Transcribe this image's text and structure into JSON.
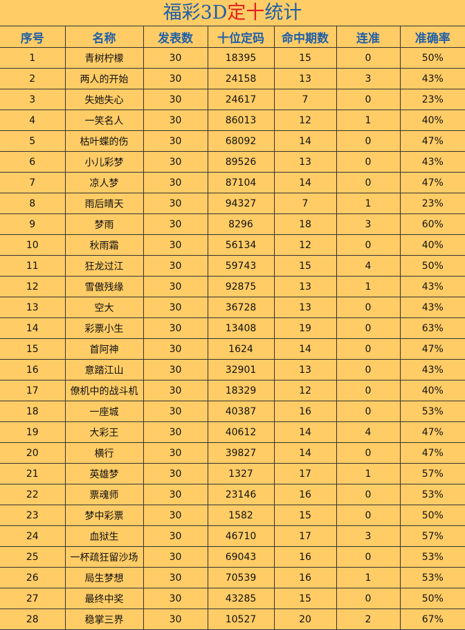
{
  "title": {
    "part1": "福彩3D",
    "part2": "定十",
    "part3": "统计"
  },
  "headers": [
    "序号",
    "名称",
    "发表数",
    "十位定码",
    "命中期数",
    "连准",
    "准确率"
  ],
  "rows": [
    [
      "1",
      "青树柠檬",
      "30",
      "18395",
      "15",
      "0",
      "50%"
    ],
    [
      "2",
      "两人的开始",
      "30",
      "24158",
      "13",
      "3",
      "43%"
    ],
    [
      "3",
      "失她失心",
      "30",
      "24617",
      "7",
      "0",
      "23%"
    ],
    [
      "4",
      "一笑名人",
      "30",
      "86013",
      "12",
      "1",
      "40%"
    ],
    [
      "5",
      "枯叶蝶的伤",
      "30",
      "68092",
      "14",
      "0",
      "47%"
    ],
    [
      "6",
      "小儿彩梦",
      "30",
      "89526",
      "13",
      "0",
      "43%"
    ],
    [
      "7",
      "凉人梦",
      "30",
      "87104",
      "14",
      "0",
      "47%"
    ],
    [
      "8",
      "雨后晴天",
      "30",
      "94327",
      "7",
      "1",
      "23%"
    ],
    [
      "9",
      "梦雨",
      "30",
      "8296",
      "18",
      "3",
      "60%"
    ],
    [
      "10",
      "秋雨霜",
      "30",
      "56134",
      "12",
      "0",
      "40%"
    ],
    [
      "11",
      "狂龙过江",
      "30",
      "59743",
      "15",
      "4",
      "50%"
    ],
    [
      "12",
      "雪傲残缘",
      "30",
      "92875",
      "13",
      "1",
      "43%"
    ],
    [
      "13",
      "空大",
      "30",
      "36728",
      "13",
      "0",
      "43%"
    ],
    [
      "14",
      "彩票小生",
      "30",
      "13408",
      "19",
      "0",
      "63%"
    ],
    [
      "15",
      "首阿神",
      "30",
      "1624",
      "14",
      "0",
      "47%"
    ],
    [
      "16",
      "意踏江山",
      "30",
      "32901",
      "13",
      "0",
      "43%"
    ],
    [
      "17",
      "僚机中的战斗机",
      "30",
      "18329",
      "12",
      "0",
      "40%"
    ],
    [
      "18",
      "一座城",
      "30",
      "40387",
      "16",
      "0",
      "53%"
    ],
    [
      "19",
      "大彩王",
      "30",
      "40612",
      "14",
      "4",
      "47%"
    ],
    [
      "20",
      "横行",
      "30",
      "39827",
      "14",
      "0",
      "47%"
    ],
    [
      "21",
      "英雄梦",
      "30",
      "1327",
      "17",
      "1",
      "57%"
    ],
    [
      "22",
      "票魂师",
      "30",
      "23146",
      "16",
      "0",
      "53%"
    ],
    [
      "23",
      "梦中彩票",
      "30",
      "1582",
      "15",
      "0",
      "50%"
    ],
    [
      "24",
      "血狱生",
      "30",
      "46710",
      "17",
      "3",
      "57%"
    ],
    [
      "25",
      "一杯疏狂留沙场",
      "30",
      "69043",
      "16",
      "0",
      "53%"
    ],
    [
      "26",
      "局生梦想",
      "30",
      "70539",
      "16",
      "1",
      "53%"
    ],
    [
      "27",
      "最终中奖",
      "30",
      "43285",
      "15",
      "0",
      "50%"
    ],
    [
      "28",
      "稳掌三界",
      "30",
      "10527",
      "20",
      "2",
      "67%"
    ]
  ]
}
